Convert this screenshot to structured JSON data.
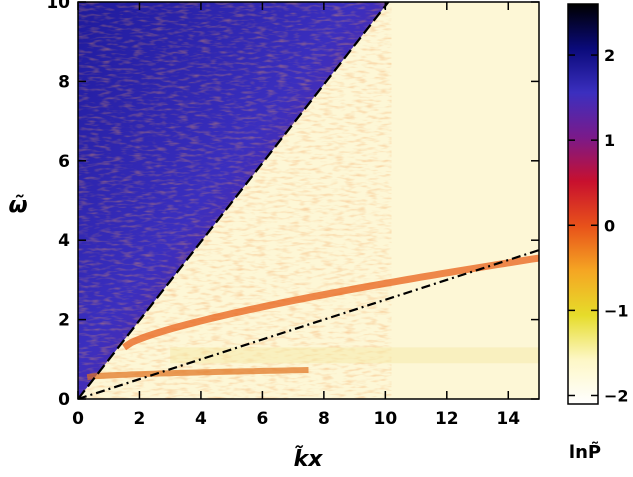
{
  "chart_data": {
    "type": "heatmap",
    "xlabel": "k̃x",
    "ylabel": "ω̃",
    "xlim": [
      0,
      15
    ],
    "ylim": [
      0,
      10
    ],
    "xticks": [
      "0",
      "2",
      "4",
      "6",
      "8",
      "10",
      "12",
      "14"
    ],
    "yticks": [
      "0",
      "2",
      "4",
      "6",
      "8",
      "10"
    ],
    "colorbar": {
      "label": "lnP̃",
      "range": [
        -2.1,
        2.6
      ],
      "ticks": [
        "2",
        "1",
        "0",
        "−1",
        "−2"
      ],
      "colors": [
        "#ffffff",
        "#fdf7c6",
        "#e6dc2a",
        "#f5a623",
        "#e8521a",
        "#c8102e",
        "#7a1a8a",
        "#3b2fbf",
        "#0a0a7a",
        "#000000"
      ]
    },
    "lines": [
      {
        "style": "dashed",
        "x": [
          0,
          10.2
        ],
        "y": [
          0,
          10.1
        ]
      },
      {
        "style": "dash-dot",
        "x": [
          0,
          15
        ],
        "y": [
          0,
          3.75
        ]
      }
    ],
    "regions": [
      {
        "name": "high-power wedge above dashed line",
        "level": 1.6
      },
      {
        "name": "low-power region below dashed line",
        "level": -2.0
      },
      {
        "name": "ridge along dash-dot curve",
        "level": 0.2
      },
      {
        "name": "lower ridge near omega 0.7",
        "level": 0.0
      }
    ]
  }
}
